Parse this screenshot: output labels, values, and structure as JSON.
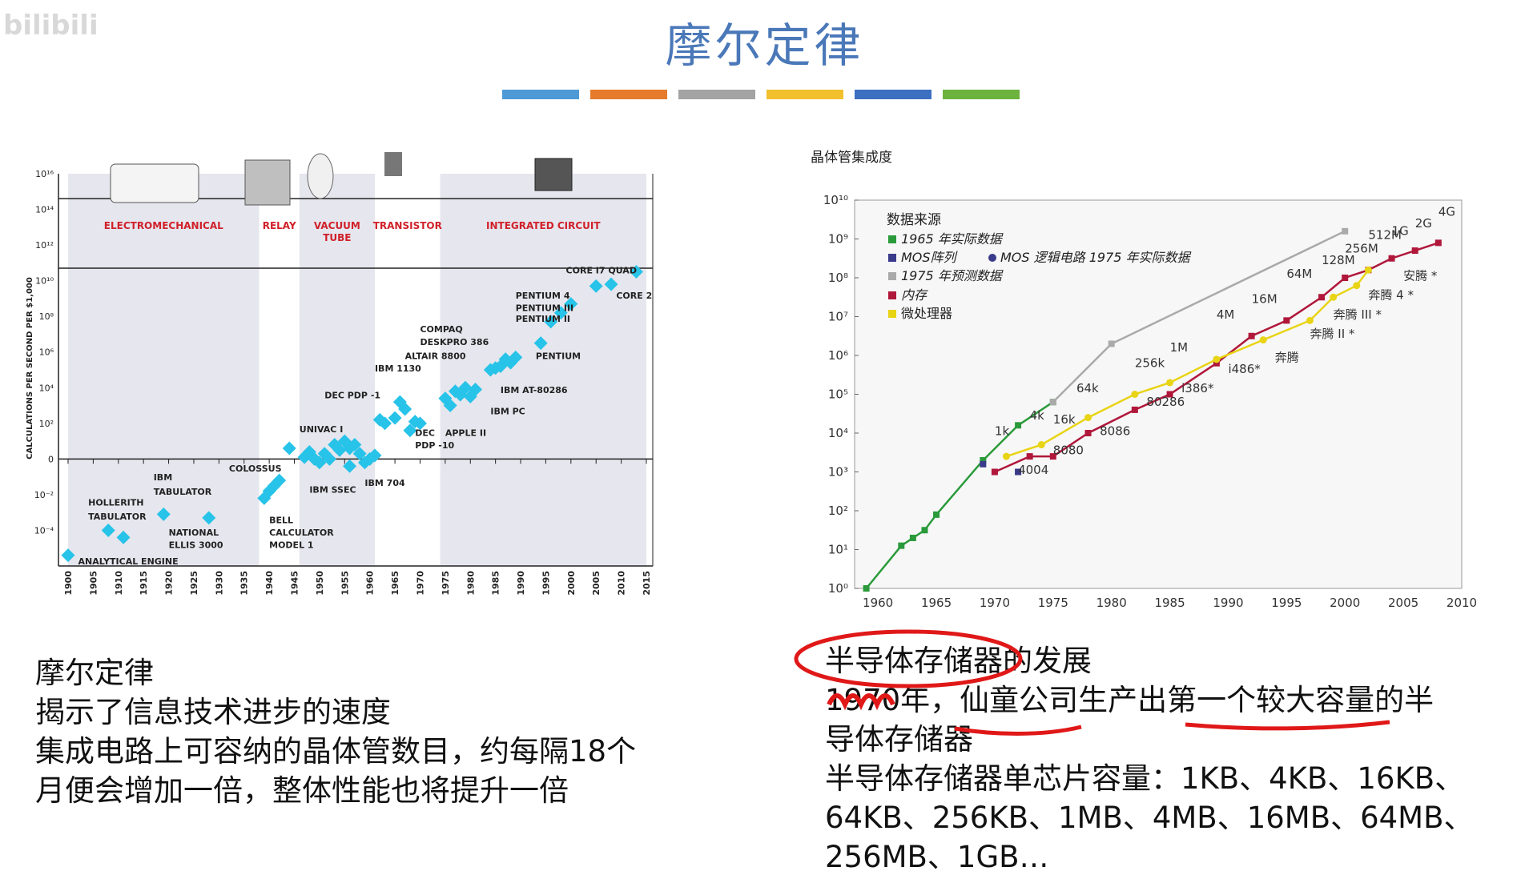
{
  "slide": {
    "title": "摩尔定律",
    "watermark": "bilibili",
    "divider_colors": [
      "#4d9ad6",
      "#e57b2b",
      "#a3a3a3",
      "#f2c02c",
      "#3c6fbf",
      "#6cb33e"
    ]
  },
  "left_text": {
    "lines": [
      "摩尔定律",
      "揭示了信息技术进步的速度",
      "集成电路上可容纳的晶体管数目，约每隔18个",
      "月便会增加一倍，整体性能也将提升一倍"
    ]
  },
  "right_text": {
    "lines": [
      "半导体存储器的发展",
      "1970年，仙童公司生产出第一个较大容量的半",
      "导体存储器",
      "半导体存储器单芯片容量：1KB、4KB、16KB、",
      "64KB、256KB、1MB、4MB、16MB、64MB、",
      "256MB、1GB…"
    ]
  },
  "chart_data": [
    {
      "type": "scatter",
      "ylabel": "CALCULATIONS PER SECOND PER $1,000",
      "x_ticks": [
        "1900",
        "1905",
        "1910",
        "1915",
        "1920",
        "1925",
        "1930",
        "1935",
        "1940",
        "1945",
        "1950",
        "1955",
        "1960",
        "1965",
        "1970",
        "1975",
        "1980",
        "1985",
        "1990",
        "1995",
        "2000",
        "2005",
        "2010",
        "2015"
      ],
      "y_ticks": [
        "10¹⁶",
        "10¹⁴",
        "10¹²",
        "10¹⁰",
        "10⁸",
        "10⁶",
        "10⁴",
        "10²",
        "0",
        "10⁻²",
        "10⁻⁴"
      ],
      "y_exponents": [
        16,
        14,
        12,
        10,
        8,
        6,
        4,
        2,
        0,
        -2,
        -4
      ],
      "ylim": [
        -6,
        16
      ],
      "xlim": [
        1900,
        2015
      ],
      "eras": [
        {
          "label": "ELECTROMECHANICAL",
          "from": 1900,
          "to": 1938,
          "shaded": true
        },
        {
          "label": "RELAY",
          "from": 1938,
          "to": 1946,
          "shaded": false
        },
        {
          "label": "VACUUM TUBE",
          "from": 1946,
          "to": 1961,
          "shaded": true
        },
        {
          "label": "TRANSISTOR",
          "from": 1961,
          "to": 1974,
          "shaded": false
        },
        {
          "label": "INTEGRATED CIRCUIT",
          "from": 1974,
          "to": 2015,
          "shaded": true
        }
      ],
      "points": [
        [
          1900,
          -5.4
        ],
        [
          1908,
          -4.0
        ],
        [
          1911,
          -4.4
        ],
        [
          1919,
          -3.1
        ],
        [
          1928,
          -3.3
        ],
        [
          1939,
          -2.2
        ],
        [
          1940,
          -1.8
        ],
        [
          1941,
          -1.5
        ],
        [
          1942,
          -1.2
        ],
        [
          1944,
          0.6
        ],
        [
          1947,
          0.1
        ],
        [
          1948,
          0.4
        ],
        [
          1949,
          0.0
        ],
        [
          1950,
          -0.2
        ],
        [
          1951,
          0.3
        ],
        [
          1952,
          0.0
        ],
        [
          1953,
          0.8
        ],
        [
          1954,
          0.5
        ],
        [
          1955,
          1.0
        ],
        [
          1956,
          0.6
        ],
        [
          1957,
          0.8
        ],
        [
          1958,
          0.3
        ],
        [
          1956,
          -0.4
        ],
        [
          1959,
          -0.2
        ],
        [
          1960,
          0.0
        ],
        [
          1961,
          0.2
        ],
        [
          1962,
          2.2
        ],
        [
          1963,
          2.0
        ],
        [
          1965,
          2.3
        ],
        [
          1966,
          3.2
        ],
        [
          1967,
          2.8
        ],
        [
          1968,
          1.6
        ],
        [
          1969,
          2.1
        ],
        [
          1970,
          2.0
        ],
        [
          1975,
          3.4
        ],
        [
          1976,
          3.0
        ],
        [
          1977,
          3.8
        ],
        [
          1978,
          3.6
        ],
        [
          1979,
          4.0
        ],
        [
          1980,
          3.5
        ],
        [
          1981,
          3.9
        ],
        [
          1984,
          5.0
        ],
        [
          1985,
          5.1
        ],
        [
          1986,
          5.2
        ],
        [
          1987,
          5.6
        ],
        [
          1988,
          5.4
        ],
        [
          1989,
          5.7
        ],
        [
          1994,
          6.5
        ],
        [
          1996,
          7.7
        ],
        [
          1998,
          8.2
        ],
        [
          2000,
          8.7
        ],
        [
          2005,
          9.7
        ],
        [
          2008,
          9.8
        ],
        [
          2013,
          10.5
        ]
      ],
      "annotations": [
        {
          "text": "HOLLERITH",
          "x": 1904,
          "y": -2.6
        },
        {
          "text": "TABULATOR",
          "x": 1904,
          "y": -3.4
        },
        {
          "text": "IBM",
          "x": 1917,
          "y": -1.2
        },
        {
          "text": "TABULATOR",
          "x": 1917,
          "y": -2.0
        },
        {
          "text": "NATIONAL",
          "x": 1920,
          "y": -4.3
        },
        {
          "text": "ELLIS 3000",
          "x": 1920,
          "y": -5.0
        },
        {
          "text": "ANALYTICAL ENGINE",
          "x": 1902,
          "y": -5.9
        },
        {
          "text": "COLOSSUS",
          "x": 1932,
          "y": -0.7
        },
        {
          "text": "BELL",
          "x": 1940,
          "y": -3.6
        },
        {
          "text": "CALCULATOR",
          "x": 1940,
          "y": -4.3
        },
        {
          "text": "MODEL 1",
          "x": 1940,
          "y": -5.0
        },
        {
          "text": "IBM SSEC",
          "x": 1948,
          "y": -1.9
        },
        {
          "text": "IBM 704",
          "x": 1959,
          "y": -1.5
        },
        {
          "text": "UNIVAC I",
          "x": 1946,
          "y": 1.5
        },
        {
          "text": "DEC PDP -1",
          "x": 1951,
          "y": 3.4
        },
        {
          "text": "IBM 1130",
          "x": 1961,
          "y": 4.9
        },
        {
          "text": "DEC",
          "x": 1969,
          "y": 1.3
        },
        {
          "text": "PDP -10",
          "x": 1969,
          "y": 0.6
        },
        {
          "text": "APPLE II",
          "x": 1975,
          "y": 1.3
        },
        {
          "text": "ALTAIR 8800",
          "x": 1967,
          "y": 5.6
        },
        {
          "text": "COMPAQ",
          "x": 1970,
          "y": 7.1
        },
        {
          "text": "DESKPRO 386",
          "x": 1970,
          "y": 6.4
        },
        {
          "text": "IBM AT-80286",
          "x": 1986,
          "y": 3.7
        },
        {
          "text": "IBM PC",
          "x": 1984,
          "y": 2.5
        },
        {
          "text": "PENTIUM",
          "x": 1993,
          "y": 5.6
        },
        {
          "text": "PENTIUM 4",
          "x": 1989,
          "y": 9.0
        },
        {
          "text": "PENTIUM III",
          "x": 1989,
          "y": 8.3
        },
        {
          "text": "PENTIUM II",
          "x": 1989,
          "y": 7.7
        },
        {
          "text": "CORE I7 QUAD",
          "x": 1999,
          "y": 10.4
        },
        {
          "text": "CORE 2",
          "x": 2009,
          "y": 9.0
        }
      ]
    },
    {
      "type": "line",
      "title": "晶体管集成度",
      "legend_title": "数据来源",
      "legend": [
        "1965 年实际数据",
        "MOS阵列",
        "MOS 逻辑电路  1975 年实际数据",
        "1975 年预测数据",
        "内存",
        "微处理器"
      ],
      "xlim": [
        1958,
        2010
      ],
      "x_ticks": [
        "1960",
        "1965",
        "1970",
        "1975",
        "1980",
        "1985",
        "1990",
        "1995",
        "2000",
        "2005",
        "2010"
      ],
      "x_tick_values": [
        1960,
        1965,
        1970,
        1975,
        1980,
        1985,
        1990,
        1995,
        2000,
        2005,
        2010
      ],
      "y_ticks": [
        "10⁰",
        "10¹",
        "10²",
        "10³",
        "10⁴",
        "10⁵",
        "10⁶",
        "10⁷",
        "10⁸",
        "10⁹",
        "10¹⁰"
      ],
      "ylim": [
        0,
        10
      ],
      "series": [
        {
          "name": "1965 年实际数据",
          "color": "#2a9a3a",
          "points": [
            [
              1959,
              0
            ],
            [
              1962,
              1.1
            ],
            [
              1963,
              1.3
            ],
            [
              1964,
              1.5
            ],
            [
              1965,
              1.9
            ],
            [
              1969,
              3.3
            ],
            [
              1972,
              4.2
            ],
            [
              1975,
              4.8
            ]
          ]
        },
        {
          "name": "1975 年预测数据",
          "color": "#aaaaaa",
          "points": [
            [
              1975,
              4.8
            ],
            [
              1980,
              6.3
            ],
            [
              2000,
              9.2
            ]
          ]
        },
        {
          "name": "内存",
          "color": "#b0173a",
          "points": [
            [
              1970,
              3.0
            ],
            [
              1973,
              3.4
            ],
            [
              1975,
              3.4
            ],
            [
              1978,
              4.0
            ],
            [
              1982,
              4.6
            ],
            [
              1985,
              5.0
            ],
            [
              1989,
              5.8
            ],
            [
              1992,
              6.5
            ],
            [
              1995,
              6.9
            ],
            [
              1998,
              7.5
            ],
            [
              2000,
              8.0
            ],
            [
              2002,
              8.2
            ],
            [
              2004,
              8.5
            ],
            [
              2006,
              8.7
            ],
            [
              2008,
              8.9
            ]
          ]
        },
        {
          "name": "微处理器",
          "color": "#e8d414",
          "points": [
            [
              1971,
              3.4
            ],
            [
              1974,
              3.7
            ],
            [
              1978,
              4.4
            ],
            [
              1982,
              5.0
            ],
            [
              1985,
              5.3
            ],
            [
              1989,
              5.9
            ],
            [
              1993,
              6.4
            ],
            [
              1997,
              6.9
            ],
            [
              1999,
              7.5
            ],
            [
              2001,
              7.8
            ],
            [
              2002,
              8.2
            ]
          ]
        }
      ],
      "mos_points": [
        [
          1969,
          3.2
        ],
        [
          1972,
          3.0
        ]
      ],
      "labels": [
        {
          "text": "1k",
          "x": 1970,
          "y": 3.95
        },
        {
          "text": "4k",
          "x": 1973,
          "y": 4.35
        },
        {
          "text": "16k",
          "x": 1975,
          "y": 4.25
        },
        {
          "text": "64k",
          "x": 1977,
          "y": 5.05
        },
        {
          "text": "256k",
          "x": 1982,
          "y": 5.7
        },
        {
          "text": "1M",
          "x": 1985,
          "y": 6.1
        },
        {
          "text": "4M",
          "x": 1989,
          "y": 6.95
        },
        {
          "text": "16M",
          "x": 1992,
          "y": 7.35
        },
        {
          "text": "64M",
          "x": 1995,
          "y": 8.0
        },
        {
          "text": "128M",
          "x": 1998,
          "y": 8.35
        },
        {
          "text": "256M",
          "x": 2000,
          "y": 8.65
        },
        {
          "text": "512M",
          "x": 2002,
          "y": 9.0
        },
        {
          "text": "1G",
          "x": 2004,
          "y": 9.1
        },
        {
          "text": "2G",
          "x": 2006,
          "y": 9.3
        },
        {
          "text": "4G",
          "x": 2008,
          "y": 9.6
        },
        {
          "text": "4004",
          "x": 1972,
          "y": 2.95
        },
        {
          "text": "8080",
          "x": 1975,
          "y": 3.45
        },
        {
          "text": "8086",
          "x": 1979,
          "y": 3.95
        },
        {
          "text": "80286",
          "x": 1983,
          "y": 4.7
        },
        {
          "text": "i386*",
          "x": 1986,
          "y": 5.05
        },
        {
          "text": "i486*",
          "x": 1990,
          "y": 5.55
        },
        {
          "text": "奔腾",
          "x": 1994,
          "y": 5.85
        },
        {
          "text": "奔腾 II *",
          "x": 1997,
          "y": 6.45
        },
        {
          "text": "奔腾 III *",
          "x": 1999,
          "y": 6.95
        },
        {
          "text": "奔腾 4 *",
          "x": 2002,
          "y": 7.45
        },
        {
          "text": "安腾 *",
          "x": 2005,
          "y": 7.95
        }
      ]
    }
  ]
}
